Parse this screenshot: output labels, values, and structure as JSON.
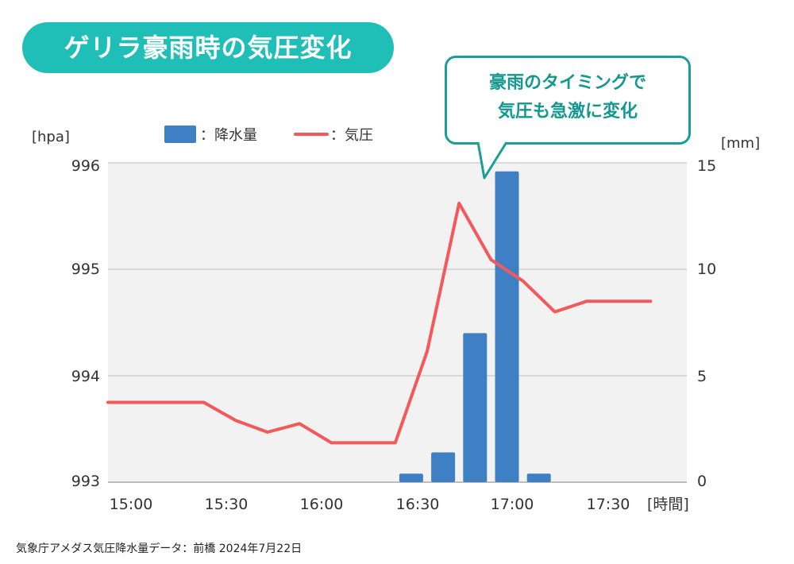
{
  "chart_data": {
    "type": "bar+line",
    "title": "ゲリラ豪雨時の気圧変化",
    "callout": [
      "豪雨のタイミングで",
      "気圧も急激に変化"
    ],
    "y_left_unit": "[hpa]",
    "y_right_unit": "[mm]",
    "x_unit": "[時間]",
    "legend": {
      "bar_label": "：降水量",
      "line_label": "：気圧",
      "placement": "top-center"
    },
    "y_left_ticks": [
      "996",
      "995",
      "994",
      "993"
    ],
    "y_right_ticks": [
      "15",
      "10",
      "5",
      "0"
    ],
    "x_ticks": [
      "15:00",
      "15:30",
      "16:00",
      "16:30",
      "17:00",
      "17:30"
    ],
    "y_left_range": [
      993,
      996
    ],
    "y_right_range": [
      0,
      15
    ],
    "x_range_minutes": [
      0,
      170
    ],
    "pressure_series": {
      "name": "気圧",
      "color": "#f4585a",
      "points": [
        {
          "t": 0,
          "v": 993.75
        },
        {
          "t": 10,
          "v": 993.75
        },
        {
          "t": 20,
          "v": 993.75
        },
        {
          "t": 30,
          "v": 993.75
        },
        {
          "t": 40,
          "v": 993.58
        },
        {
          "t": 50,
          "v": 993.47
        },
        {
          "t": 60,
          "v": 993.55
        },
        {
          "t": 70,
          "v": 993.37
        },
        {
          "t": 80,
          "v": 993.37
        },
        {
          "t": 90,
          "v": 993.37
        },
        {
          "t": 100,
          "v": 994.23
        },
        {
          "t": 110,
          "v": 995.62
        },
        {
          "t": 120,
          "v": 995.09
        },
        {
          "t": 130,
          "v": 994.89
        },
        {
          "t": 140,
          "v": 994.6
        },
        {
          "t": 150,
          "v": 994.7
        },
        {
          "t": 160,
          "v": 994.7
        },
        {
          "t": 170,
          "v": 994.7
        }
      ]
    },
    "rain_series": {
      "name": "降水量",
      "color": "#3f7fc4",
      "bars": [
        {
          "t": 95,
          "v": 0.4
        },
        {
          "t": 105,
          "v": 1.4
        },
        {
          "t": 115,
          "v": 7.0
        },
        {
          "t": 125,
          "v": 14.6
        },
        {
          "t": 135,
          "v": 0.4
        }
      ]
    },
    "grid": true
  },
  "footer": "気象庁アメダス気圧降水量データ：前橋 2024年7月22日"
}
